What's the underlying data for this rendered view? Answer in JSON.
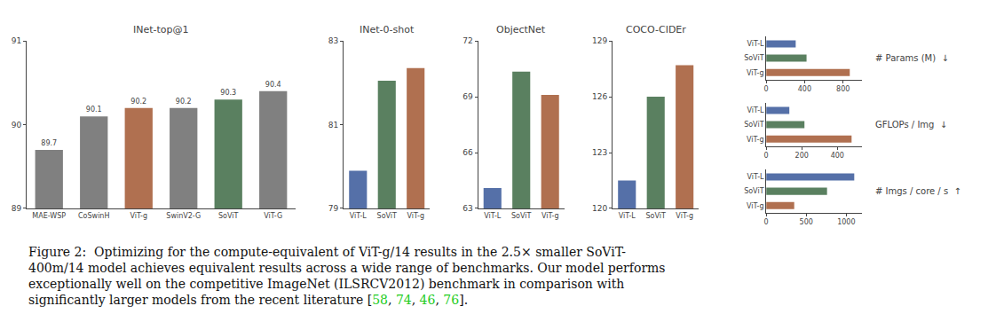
{
  "chart_data": [
    {
      "type": "bar",
      "title": "INet-top@1",
      "categories": [
        "MAE-WSP",
        "CoSwinH",
        "ViT-g",
        "SwinV2-G",
        "SoViT",
        "ViT-G"
      ],
      "values": [
        89.7,
        90.1,
        90.2,
        90.2,
        90.3,
        90.4
      ],
      "colors": [
        "#808080",
        "#808080",
        "#b07050",
        "#808080",
        "#5a8060",
        "#808080"
      ],
      "ylim": [
        89,
        91
      ],
      "yticks": [
        89,
        90,
        91
      ],
      "data_labels": true,
      "grid": false
    },
    {
      "type": "bar",
      "title": "INet-0-shot",
      "categories": [
        "ViT-L",
        "SoViT",
        "ViT-g"
      ],
      "values": [
        79.9,
        82.05,
        82.35
      ],
      "colors": [
        "#5570a8",
        "#5a8060",
        "#b07050"
      ],
      "ylim": [
        79,
        83
      ],
      "yticks": [
        79,
        81,
        83
      ],
      "data_labels": false,
      "grid": false
    },
    {
      "type": "bar",
      "title": "ObjectNet",
      "categories": [
        "ViT-L",
        "SoViT",
        "ViT-g"
      ],
      "values": [
        64.1,
        70.35,
        69.1
      ],
      "colors": [
        "#5570a8",
        "#5a8060",
        "#b07050"
      ],
      "ylim": [
        63,
        72
      ],
      "yticks": [
        63,
        66,
        69,
        72
      ],
      "data_labels": false,
      "grid": false
    },
    {
      "type": "bar",
      "title": "COCO-CIDEr",
      "categories": [
        "ViT-L",
        "SoViT",
        "ViT-g"
      ],
      "values": [
        121.5,
        126.0,
        127.7
      ],
      "colors": [
        "#5570a8",
        "#5a8060",
        "#b07050"
      ],
      "ylim": [
        120,
        129
      ],
      "yticks": [
        120,
        123,
        126,
        129
      ],
      "data_labels": false,
      "grid": false
    },
    {
      "type": "bar",
      "orientation": "horizontal",
      "annotation": "# Params (M)  ↓",
      "categories": [
        "ViT-L",
        "SoViT",
        "ViT-g"
      ],
      "values": [
        307,
        420,
        870
      ],
      "colors": [
        "#5570a8",
        "#5a8060",
        "#b07050"
      ],
      "xlim": [
        0,
        1000
      ],
      "xticks": [
        0,
        400,
        800
      ],
      "grid": false
    },
    {
      "type": "bar",
      "orientation": "horizontal",
      "annotation": "GFLOPs / Img  ↓",
      "categories": [
        "ViT-L",
        "SoViT",
        "ViT-g"
      ],
      "values": [
        130,
        215,
        480
      ],
      "colors": [
        "#5570a8",
        "#5a8060",
        "#b07050"
      ],
      "xlim": [
        0,
        540
      ],
      "xticks": [
        0,
        200,
        400
      ],
      "grid": false
    },
    {
      "type": "bar",
      "orientation": "horizontal",
      "annotation": "# Imgs / core / s  ↑",
      "categories": [
        "ViT-L",
        "SoViT",
        "ViT-g"
      ],
      "values": [
        1100,
        760,
        350
      ],
      "colors": [
        "#5570a8",
        "#5a8060",
        "#b07050"
      ],
      "xlim": [
        0,
        1200
      ],
      "xticks": [
        0,
        500,
        1000
      ],
      "grid": false
    }
  ],
  "caption": {
    "lines": [
      "Figure 2:  Optimizing for the compute-equivalent of ViT-g/14 results in the 2.5× smaller SoViT-",
      "400m/14 model achieves equivalent results across a wide range of benchmarks. Our model performs",
      "exceptionally well on the competitive ImageNet (ILSRCV2012) benchmark in comparison with",
      "significantly larger models from the recent literature ["
    ],
    "refs": [
      "58",
      ", ",
      "74",
      ", ",
      "46",
      ", ",
      "76"
    ],
    "post": "].",
    "ref_color": "#22cc22",
    "color": "#111111"
  }
}
